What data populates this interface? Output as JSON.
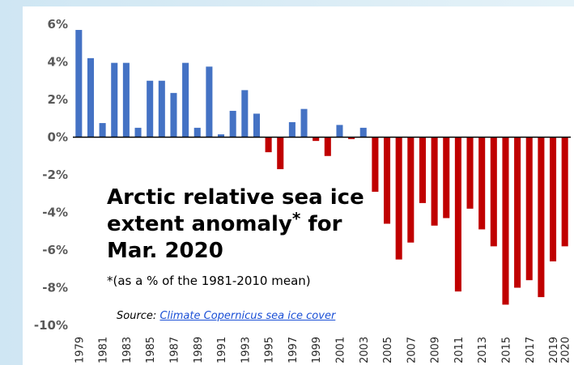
{
  "chart_data": {
    "type": "bar",
    "title_line1": "Arctic relative sea ice",
    "title_line2": "extent anomaly",
    "title_sup": "*",
    "title_line2_suffix": " for",
    "title_line3": "Mar. 2020",
    "note": "*(as a % of the 1981-2010 mean)",
    "source_label": "Source:",
    "source_link": "Climate Copernicus sea ice cover",
    "ylim": [
      -10,
      6
    ],
    "yticks": [
      6,
      4,
      2,
      0,
      -2,
      -4,
      -6,
      -8,
      -10
    ],
    "ytick_labels": [
      "6%",
      "4%",
      "2%",
      "0%",
      "-2%",
      "-4%",
      "-6%",
      "-8%",
      "-10%"
    ],
    "categories": [
      "1979",
      "1980",
      "1981",
      "1982",
      "1983",
      "1984",
      "1985",
      "1986",
      "1987",
      "1988",
      "1989",
      "1990",
      "1991",
      "1992",
      "1993",
      "1994",
      "1995",
      "1996",
      "1997",
      "1998",
      "1999",
      "2000",
      "2001",
      "2002",
      "2003",
      "2004",
      "2005",
      "2006",
      "2007",
      "2008",
      "2009",
      "2010",
      "2011",
      "2012",
      "2013",
      "2014",
      "2015",
      "2016",
      "2017",
      "2018",
      "2019",
      "2020"
    ],
    "tick_labels": [
      "1979",
      "",
      "1981",
      "",
      "1983",
      "",
      "1985",
      "",
      "1987",
      "",
      "1989",
      "",
      "1991",
      "",
      "1993",
      "",
      "1995",
      "",
      "1997",
      "",
      "1999",
      "",
      "2001",
      "",
      "2003",
      "",
      "2005",
      "",
      "2007",
      "",
      "2009",
      "",
      "2011",
      "",
      "2013",
      "",
      "2015",
      "",
      "2017",
      "",
      "2019",
      "2020"
    ],
    "values": [
      5.7,
      4.2,
      0.75,
      3.95,
      3.95,
      0.5,
      3.0,
      3.0,
      2.35,
      3.95,
      0.5,
      3.75,
      0.15,
      1.4,
      2.5,
      1.25,
      -0.8,
      -1.7,
      0.8,
      1.5,
      -0.2,
      -1.0,
      0.65,
      -0.1,
      0.5,
      -2.9,
      -4.6,
      -6.5,
      -5.6,
      -3.5,
      -4.7,
      -4.3,
      -8.2,
      -3.8,
      -4.9,
      -5.8,
      -8.9,
      -8.0,
      -7.6,
      -8.5,
      -6.6,
      -5.8
    ],
    "grid": false,
    "colors": {
      "positive": "#4472c4",
      "negative": "#c00000",
      "axis": "#000000"
    }
  }
}
